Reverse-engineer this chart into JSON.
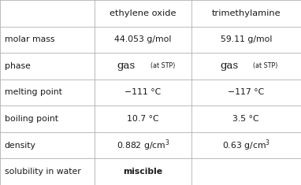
{
  "headers": [
    "",
    "ethylene oxide",
    "trimethylamine"
  ],
  "rows": [
    {
      "label": "molar mass",
      "col1": {
        "text": "44.053 g/mol",
        "style": "normal"
      },
      "col2": {
        "text": "59.11 g/mol",
        "style": "normal"
      }
    },
    {
      "label": "phase",
      "col1": {
        "main": "gas",
        "sub": "(at STP)",
        "style": "mixed"
      },
      "col2": {
        "main": "gas",
        "sub": "(at STP)",
        "style": "mixed"
      }
    },
    {
      "label": "melting point",
      "col1": {
        "text": "−111 °C",
        "style": "normal"
      },
      "col2": {
        "text": "−117 °C",
        "style": "normal"
      }
    },
    {
      "label": "boiling point",
      "col1": {
        "text": "10.7 °C",
        "style": "normal"
      },
      "col2": {
        "text": "3.5 °C",
        "style": "normal"
      }
    },
    {
      "label": "density",
      "col1": {
        "text": "0.882 g/cm",
        "sup": "3",
        "style": "superscript"
      },
      "col2": {
        "text": "0.63 g/cm",
        "sup": "3",
        "style": "superscript"
      }
    },
    {
      "label": "solubility in water",
      "col1": {
        "text": "miscible",
        "style": "bold"
      },
      "col2": {
        "text": "",
        "style": "normal"
      }
    }
  ],
  "col_bounds": [
    0.0,
    0.315,
    0.635,
    1.0
  ],
  "bg_color": "#ffffff",
  "text_color": "#1a1a1a",
  "line_color": "#b0b0b0",
  "header_fontsize": 8.2,
  "label_fontsize": 7.8,
  "data_fontsize": 7.8,
  "gas_main_fontsize": 9.5,
  "gas_sub_fontsize": 5.8,
  "fig_width": 3.82,
  "fig_height": 2.35,
  "dpi": 100
}
